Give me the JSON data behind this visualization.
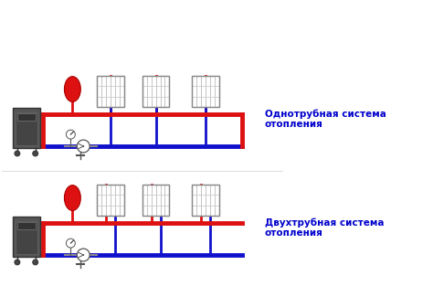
{
  "title1": "Однотрубная система\nотопления",
  "title2": "Двухтрубная система\nотопления",
  "text_color": "#0000cc",
  "red": "#dd1111",
  "blue": "#1111cc",
  "bg": "#ffffff",
  "lw_pipe": 3.5,
  "lw_thin": 2.0
}
